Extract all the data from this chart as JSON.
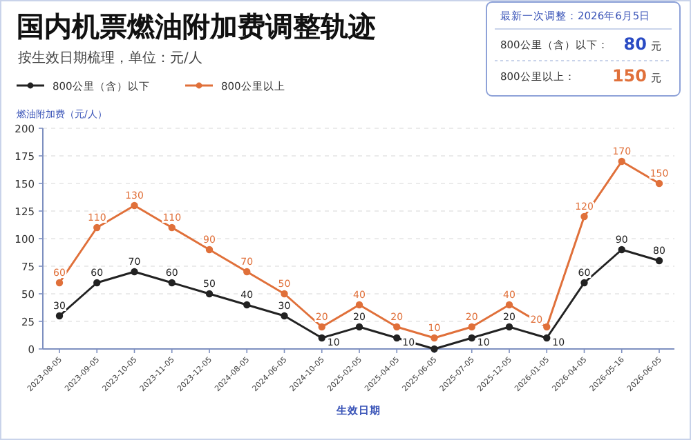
{
  "chart_data": {
    "type": "line",
    "title": "国内机票燃油附加费调整轨迹",
    "subtitle": "按生效日期梳理，单位：元/人",
    "xlabel": "生效日期",
    "ylabel": "燃油附加费（元/人）",
    "categories": [
      "2023-08-05",
      "2023-09-05",
      "2023-10-05",
      "2023-11-05",
      "2023-12-05",
      "2024-08-05",
      "2024-06-05",
      "2024-10-05",
      "2025-02-05",
      "2025-04-05",
      "2025-06-05",
      "2025-07-05",
      "2025-12-05",
      "2026-01-05",
      "2026-04-05",
      "2026-05-16",
      "2026-06-05"
    ],
    "series": [
      {
        "name": "800公里（含）以下",
        "color": "#222222",
        "values": [
          30,
          60,
          70,
          60,
          50,
          40,
          30,
          10,
          20,
          10,
          0,
          10,
          20,
          10,
          60,
          90,
          80
        ],
        "value_labels": [
          "30",
          "60",
          "70",
          "60",
          "50",
          "40",
          "30",
          "10",
          "20",
          "10",
          null,
          "10",
          "20",
          "10",
          "60",
          "90",
          "80"
        ]
      },
      {
        "name": "800公里以上",
        "color": "#e0703a",
        "values": [
          60,
          110,
          130,
          110,
          90,
          70,
          50,
          20,
          40,
          20,
          10,
          20,
          40,
          20,
          120,
          170,
          150
        ],
        "value_labels": [
          "60",
          "110",
          "130",
          "110",
          "90",
          "70",
          "50",
          "20",
          "40",
          "20",
          "10",
          "20",
          "40",
          "20",
          "120",
          "170",
          "150"
        ]
      }
    ],
    "ylim": [
      0,
      200
    ],
    "yticks": [
      0,
      25,
      50,
      75,
      100,
      125,
      150,
      175,
      200
    ],
    "grid": "y",
    "legend": "top left",
    "marker": "circle",
    "annotations": [
      "最新一次调整：2026年6月5日",
      "800公里（含）以下：",
      "80",
      "元",
      "800公里以上：",
      "150",
      "元"
    ]
  }
}
